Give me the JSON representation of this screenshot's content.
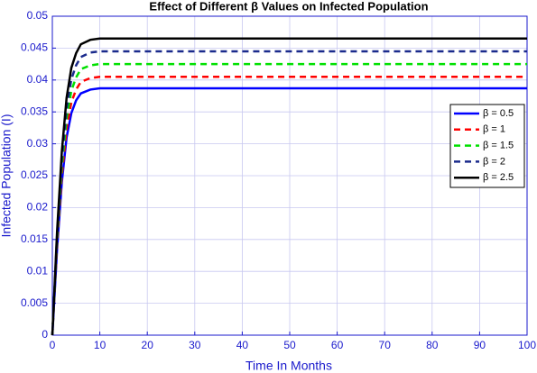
{
  "chart_data": {
    "type": "line",
    "title": "Effect of Different β Values on Infected Population",
    "x_label": "Time In Months",
    "y_label": "Infected Population (I)",
    "x": [
      0,
      1,
      2,
      3,
      4,
      5,
      6,
      8,
      10,
      15,
      100
    ],
    "series": [
      {
        "name": "β = 0.5",
        "color": "#0000ff",
        "line_style": "solid",
        "values": [
          0,
          0.0135,
          0.024,
          0.031,
          0.0348,
          0.0368,
          0.0379,
          0.0385,
          0.0387,
          0.0387,
          0.0387
        ]
      },
      {
        "name": "β = 1",
        "color": "#ff0000",
        "line_style": "dashed",
        "values": [
          0,
          0.0142,
          0.0251,
          0.0324,
          0.0365,
          0.0385,
          0.0397,
          0.0403,
          0.0405,
          0.0405,
          0.0405
        ]
      },
      {
        "name": "β = 1.5",
        "color": "#00e000",
        "line_style": "dashed",
        "values": [
          0,
          0.0149,
          0.0264,
          0.034,
          0.0383,
          0.0404,
          0.0417,
          0.0423,
          0.0425,
          0.0425,
          0.0425
        ]
      },
      {
        "name": "β = 2",
        "color": "#1a2a8c",
        "line_style": "dashed",
        "values": [
          0,
          0.0156,
          0.0276,
          0.0356,
          0.0401,
          0.0423,
          0.0436,
          0.0443,
          0.0445,
          0.0445,
          0.0445
        ]
      },
      {
        "name": "β = 2.5",
        "color": "#000000",
        "line_style": "solid",
        "values": [
          0,
          0.0163,
          0.0288,
          0.0372,
          0.0419,
          0.0442,
          0.0456,
          0.0463,
          0.0465,
          0.0465,
          0.0465
        ]
      }
    ],
    "xlim": [
      0,
      100
    ],
    "xticks": [
      0,
      10,
      20,
      30,
      40,
      50,
      60,
      70,
      80,
      90,
      100
    ],
    "ylim": [
      0,
      0.05
    ],
    "yticks": [
      0,
      0.005,
      0.01,
      0.015,
      0.02,
      0.025,
      0.03,
      0.035,
      0.04,
      0.045,
      0.05
    ],
    "grid": true,
    "legend_position": "right"
  }
}
